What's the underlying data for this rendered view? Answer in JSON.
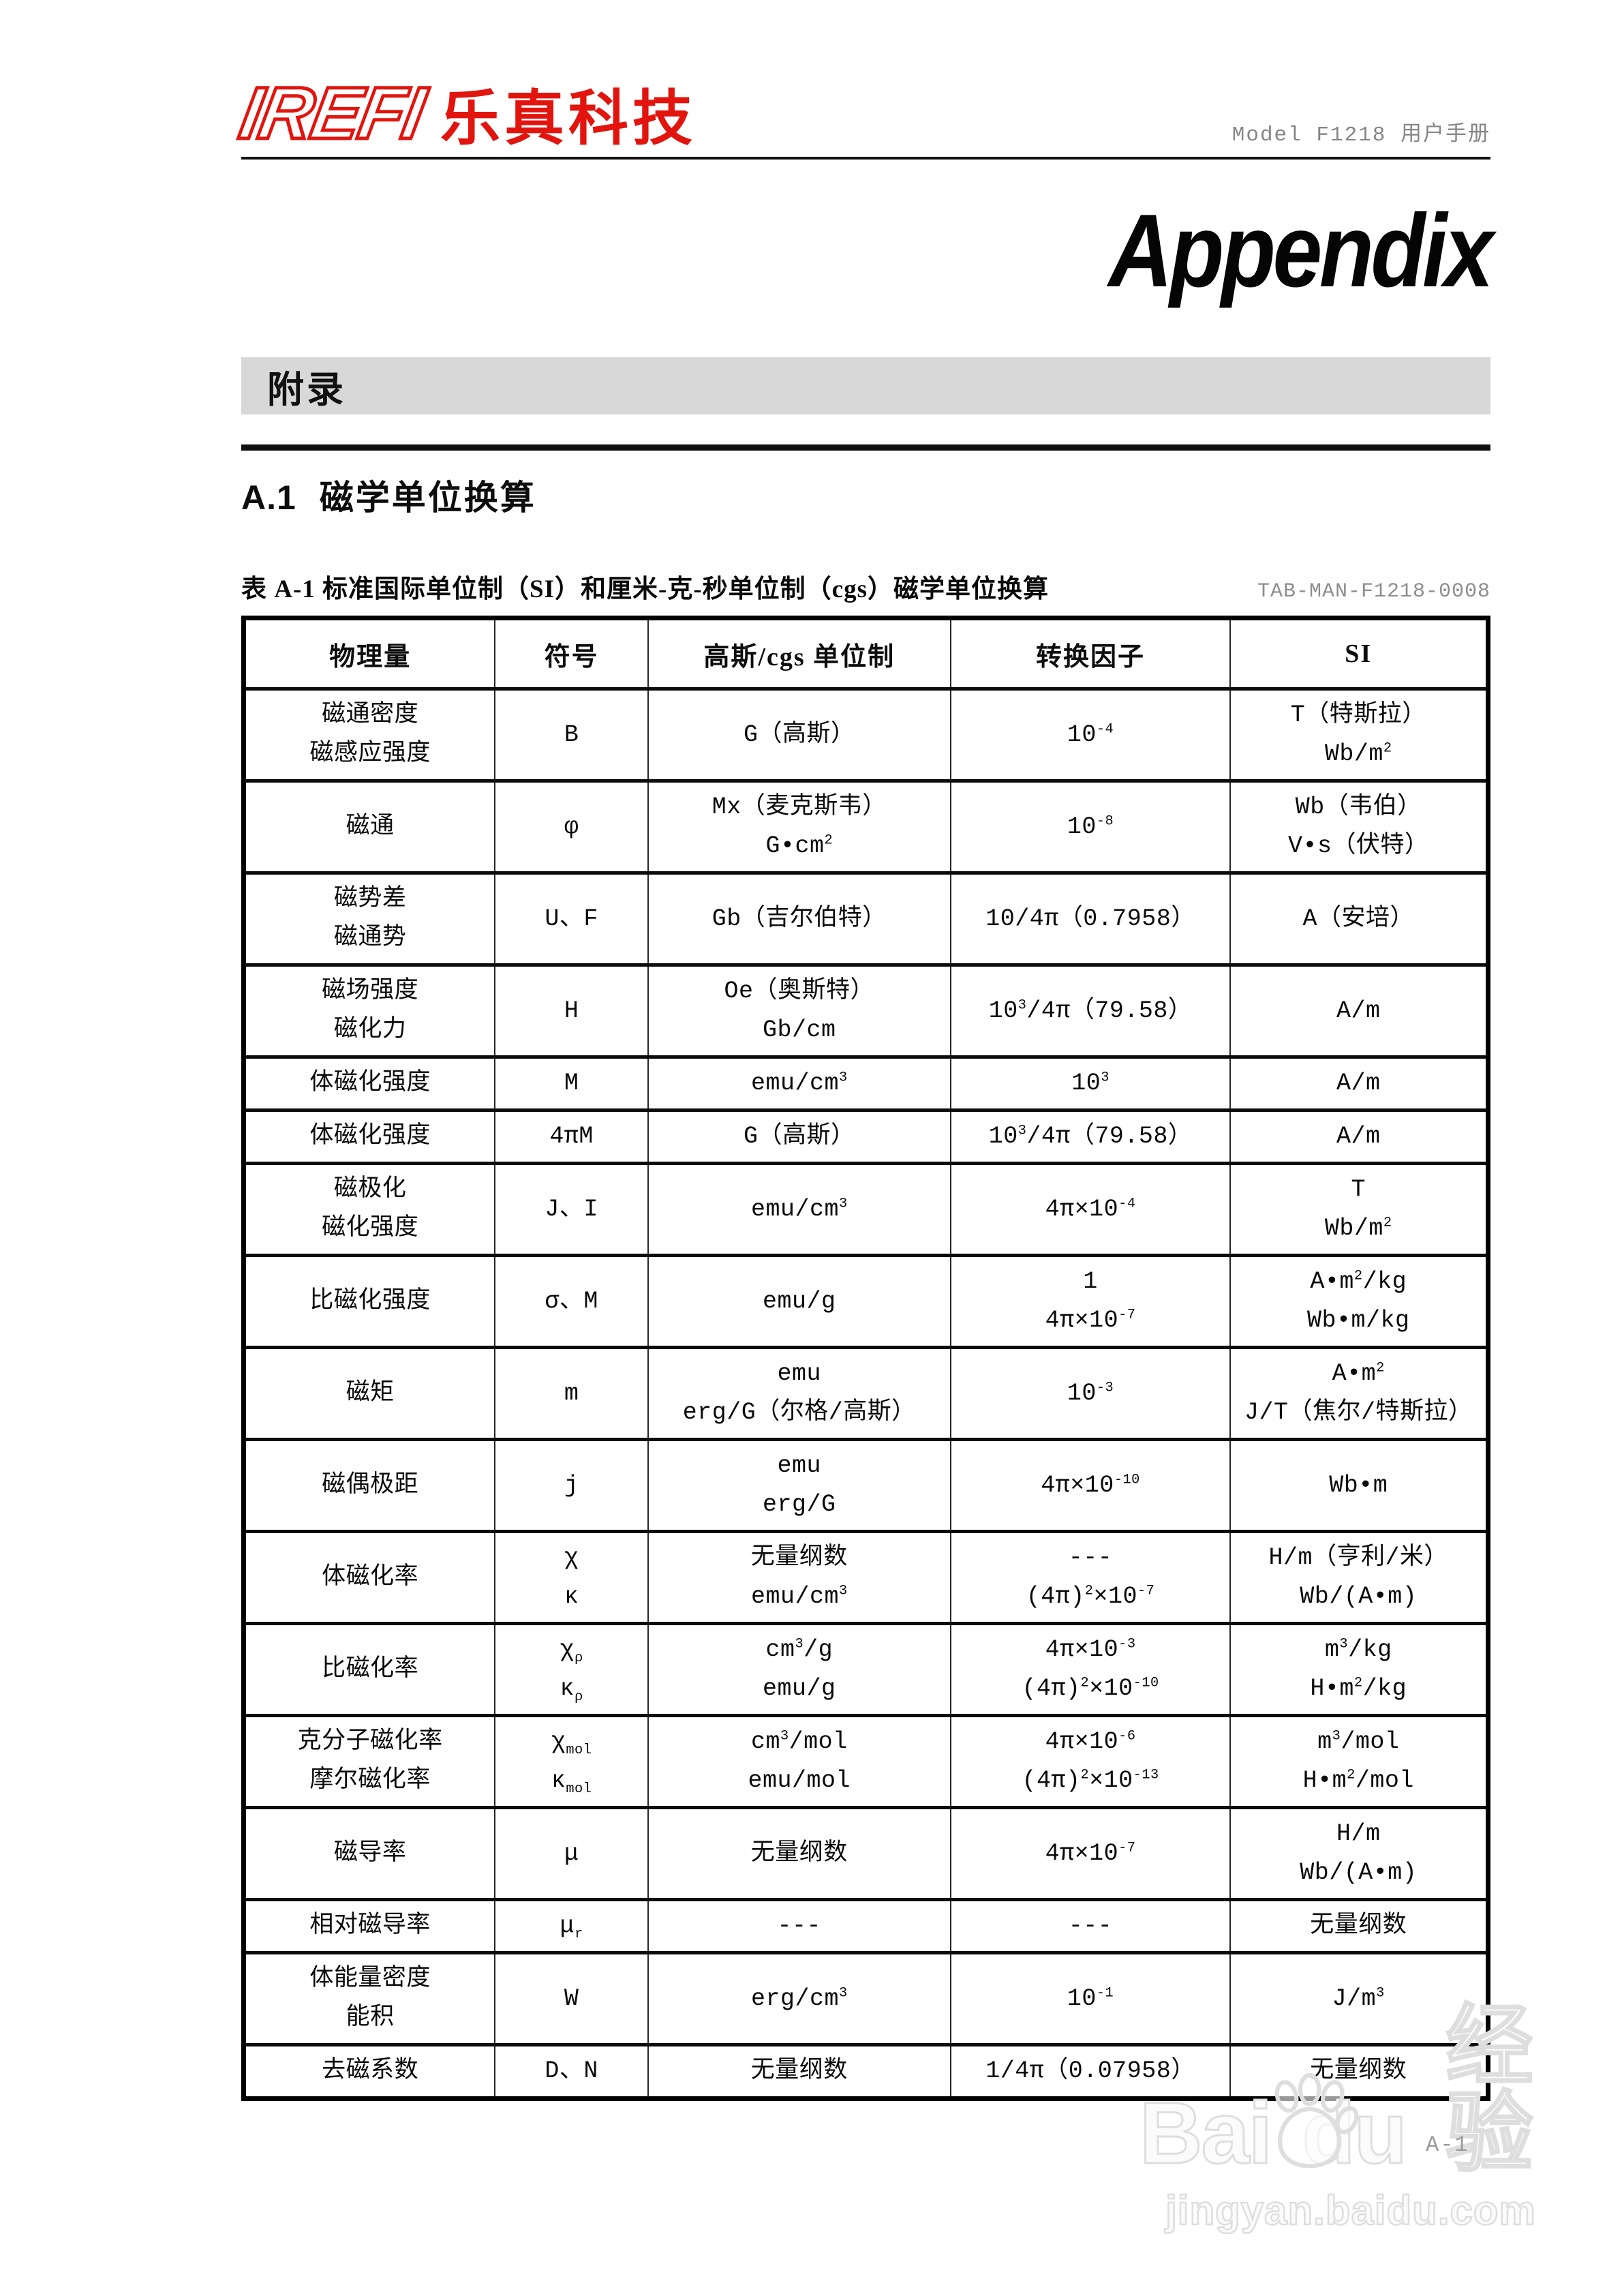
{
  "header": {
    "logo_mark": "IREFI",
    "logo_text": "乐真科技",
    "manual_title": "Model F1218 用户手册"
  },
  "appendix": {
    "title_en": "Appendix",
    "title_zh": "附录"
  },
  "section": {
    "heading_no": "A.1",
    "heading_text": "磁学单位换算"
  },
  "table": {
    "caption": "表 A-1 标准国际单位制（SI）和厘米-克-秒单位制（cgs）磁学单位换算",
    "doc_code": "TAB-MAN-F1218-0008",
    "headers": [
      "物理量",
      "符号",
      "高斯/cgs 单位制",
      "转换因子",
      "SI"
    ],
    "rows": [
      [
        [
          "磁通密度",
          "磁感应强度"
        ],
        [
          "B"
        ],
        [
          "G（高斯）"
        ],
        [
          "10^{-4}"
        ],
        [
          "T（特斯拉）",
          "Wb/m^{2}"
        ]
      ],
      [
        [
          "磁通"
        ],
        [
          "φ"
        ],
        [
          "Mx（麦克斯韦）",
          "G•cm^{2}"
        ],
        [
          "10^{-8}"
        ],
        [
          "Wb（韦伯）",
          "V•s（伏特）"
        ]
      ],
      [
        [
          "磁势差",
          "磁通势"
        ],
        [
          "U、F"
        ],
        [
          "Gb（吉尔伯特）"
        ],
        [
          "10/4π（0.7958）"
        ],
        [
          "A（安培）"
        ]
      ],
      [
        [
          "磁场强度",
          "磁化力"
        ],
        [
          "H"
        ],
        [
          "Oe（奥斯特）",
          "Gb/cm"
        ],
        [
          "10^{3}/4π（79.58）"
        ],
        [
          "A/m"
        ]
      ],
      [
        [
          "体磁化强度"
        ],
        [
          "M"
        ],
        [
          "emu/cm^{3}"
        ],
        [
          "10^{3}"
        ],
        [
          "A/m"
        ]
      ],
      [
        [
          "体磁化强度"
        ],
        [
          "4πM"
        ],
        [
          "G（高斯）"
        ],
        [
          "10^{3}/4π（79.58）"
        ],
        [
          "A/m"
        ]
      ],
      [
        [
          "磁极化",
          "磁化强度"
        ],
        [
          "J、I"
        ],
        [
          "emu/cm^{3}"
        ],
        [
          "4π×10^{-4}"
        ],
        [
          "T",
          "Wb/m^{2}"
        ]
      ],
      [
        [
          "比磁化强度"
        ],
        [
          "σ、M"
        ],
        [
          "emu/g"
        ],
        [
          "1",
          "4π×10^{-7}"
        ],
        [
          "A•m^{2}/kg",
          "Wb•m/kg"
        ]
      ],
      [
        [
          "磁矩"
        ],
        [
          "m"
        ],
        [
          "emu",
          "erg/G（尔格/高斯）"
        ],
        [
          "10^{-3}"
        ],
        [
          "A•m^{2}",
          "J/T（焦尔/特斯拉）"
        ]
      ],
      [
        [
          "磁偶极距"
        ],
        [
          "j"
        ],
        [
          "emu",
          "erg/G"
        ],
        [
          "4π×10^{-10}"
        ],
        [
          "Wb•m"
        ]
      ],
      [
        [
          "体磁化率"
        ],
        [
          "χ",
          "κ"
        ],
        [
          "无量纲数",
          "emu/cm^{3}"
        ],
        [
          "---",
          "(4π)^{2}×10^{-7}"
        ],
        [
          "H/m（亨利/米）",
          "Wb/(A•m)"
        ]
      ],
      [
        [
          "比磁化率"
        ],
        [
          "χ_{ρ}",
          "κ_{ρ}"
        ],
        [
          "cm^{3}/g",
          "emu/g"
        ],
        [
          "4π×10^{-3}",
          "(4π)^{2}×10^{-10}"
        ],
        [
          "m^{3}/kg",
          "H•m^{2}/kg"
        ]
      ],
      [
        [
          "克分子磁化率",
          "摩尔磁化率"
        ],
        [
          "χ_{mol}",
          "κ_{mol}"
        ],
        [
          "cm^{3}/mol",
          "emu/mol"
        ],
        [
          "4π×10^{-6}",
          "(4π)^{2}×10^{-13}"
        ],
        [
          "m^{3}/mol",
          "H•m^{2}/mol"
        ]
      ],
      [
        [
          "磁导率"
        ],
        [
          "μ"
        ],
        [
          "无量纲数"
        ],
        [
          "4π×10^{-7}"
        ],
        [
          "H/m",
          "Wb/(A•m)"
        ]
      ],
      [
        [
          "相对磁导率"
        ],
        [
          "μ_{r}"
        ],
        [
          "---"
        ],
        [
          "---"
        ],
        [
          "无量纲数"
        ]
      ],
      [
        [
          "体能量密度",
          "能积"
        ],
        [
          "W"
        ],
        [
          "erg/cm^{3}"
        ],
        [
          "10^{-1}"
        ],
        [
          "J/m^{3}"
        ]
      ],
      [
        [
          "去磁系数"
        ],
        [
          "D、N"
        ],
        [
          "无量纲数"
        ],
        [
          "1/4π（0.07958）"
        ],
        [
          "无量纲数"
        ]
      ]
    ]
  },
  "watermark": {
    "brand_left": "Bai",
    "brand_right": "du",
    "brand_zh": "经验",
    "url": "jingyan.baidu.com"
  },
  "page_number": "A-1",
  "colors": {
    "logo_red": "#e2140e",
    "section_bar_gray": "#d8d8d8",
    "muted_gray": "#868686",
    "watermark_gray": "#dedede"
  }
}
